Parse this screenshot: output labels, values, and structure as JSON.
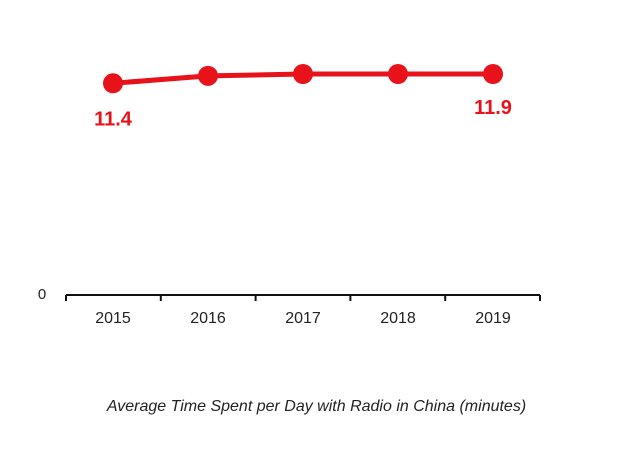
{
  "chart_data": {
    "type": "line",
    "title": "",
    "caption": "Average Time Spent per Day with Radio in China (minutes)",
    "xlabel": "",
    "ylabel": "",
    "categories": [
      "2015",
      "2016",
      "2017",
      "2018",
      "2019"
    ],
    "series": [
      {
        "values": [
          11.4,
          11.8,
          11.9,
          11.9,
          11.9
        ]
      }
    ],
    "data_labels": [
      {
        "index": 0,
        "text": "11.4"
      },
      {
        "index": 4,
        "text": "11.9"
      }
    ],
    "y_axis_label": "0",
    "ylim": [
      0,
      14
    ],
    "grid": false,
    "legend": "none",
    "colors": {
      "series": "#e8121a",
      "axis": "#111111",
      "text": "#222222"
    }
  }
}
